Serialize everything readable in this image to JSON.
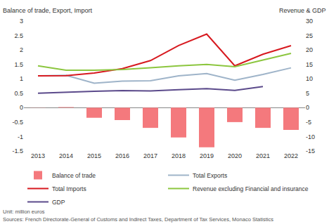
{
  "chart_data": {
    "type": "bar",
    "ylabel": "Balance of trade, Export, Import",
    "y2label": "Revenue & GDP",
    "annotations": [
      "Unit: million euros",
      "Sources: French Directorate-General of Customs and Indirect Taxes, Department of Tax Services, Monaco Statistics"
    ],
    "categories": [
      "2013",
      "2014",
      "2015",
      "2016",
      "2017",
      "2018",
      "2019",
      "2020",
      "2021",
      "2022"
    ],
    "series": [
      {
        "name": "Balance of trade",
        "type": "bar",
        "color": "#f4797d",
        "values": [
          0.005,
          0.02,
          -0.35,
          -0.43,
          -0.7,
          -1.03,
          -1.37,
          -0.5,
          -0.7,
          -0.77
        ]
      },
      {
        "name": "Total Exports",
        "type": "line",
        "color": "#9fb4c9",
        "values": [
          1.1,
          1.12,
          0.85,
          0.92,
          0.93,
          1.1,
          1.18,
          0.95,
          1.15,
          1.38
        ]
      },
      {
        "name": "Total Imports",
        "type": "line",
        "color": "#d7191f",
        "values": [
          1.1,
          1.11,
          1.2,
          1.35,
          1.63,
          2.15,
          2.55,
          1.45,
          1.85,
          2.15
        ]
      },
      {
        "name": "Revenue excluding Financial and insurance activities",
        "type": "line",
        "color": "#8cc63f",
        "axis": "y2",
        "values": [
          14.5,
          13,
          13,
          13.2,
          13.8,
          14.5,
          15,
          14.2,
          16.5,
          18.8
        ]
      },
      {
        "name": "GDP",
        "type": "line",
        "color": "#5b4a8b",
        "axis": "y2",
        "values": [
          5,
          5.4,
          5.7,
          5.9,
          5.8,
          6.2,
          6.6,
          6,
          7.3,
          null
        ]
      }
    ],
    "ylim": [
      -1.5,
      3
    ],
    "yticks": [
      -1.5,
      -1,
      -0.5,
      0,
      0.5,
      1,
      1.5,
      2,
      2.5,
      3
    ],
    "y2lim": [
      -15,
      30
    ],
    "y2ticks": [
      -15,
      -10,
      -5,
      0,
      5,
      10,
      15,
      20,
      25,
      30
    ],
    "grid": false,
    "legend": "bottom"
  }
}
